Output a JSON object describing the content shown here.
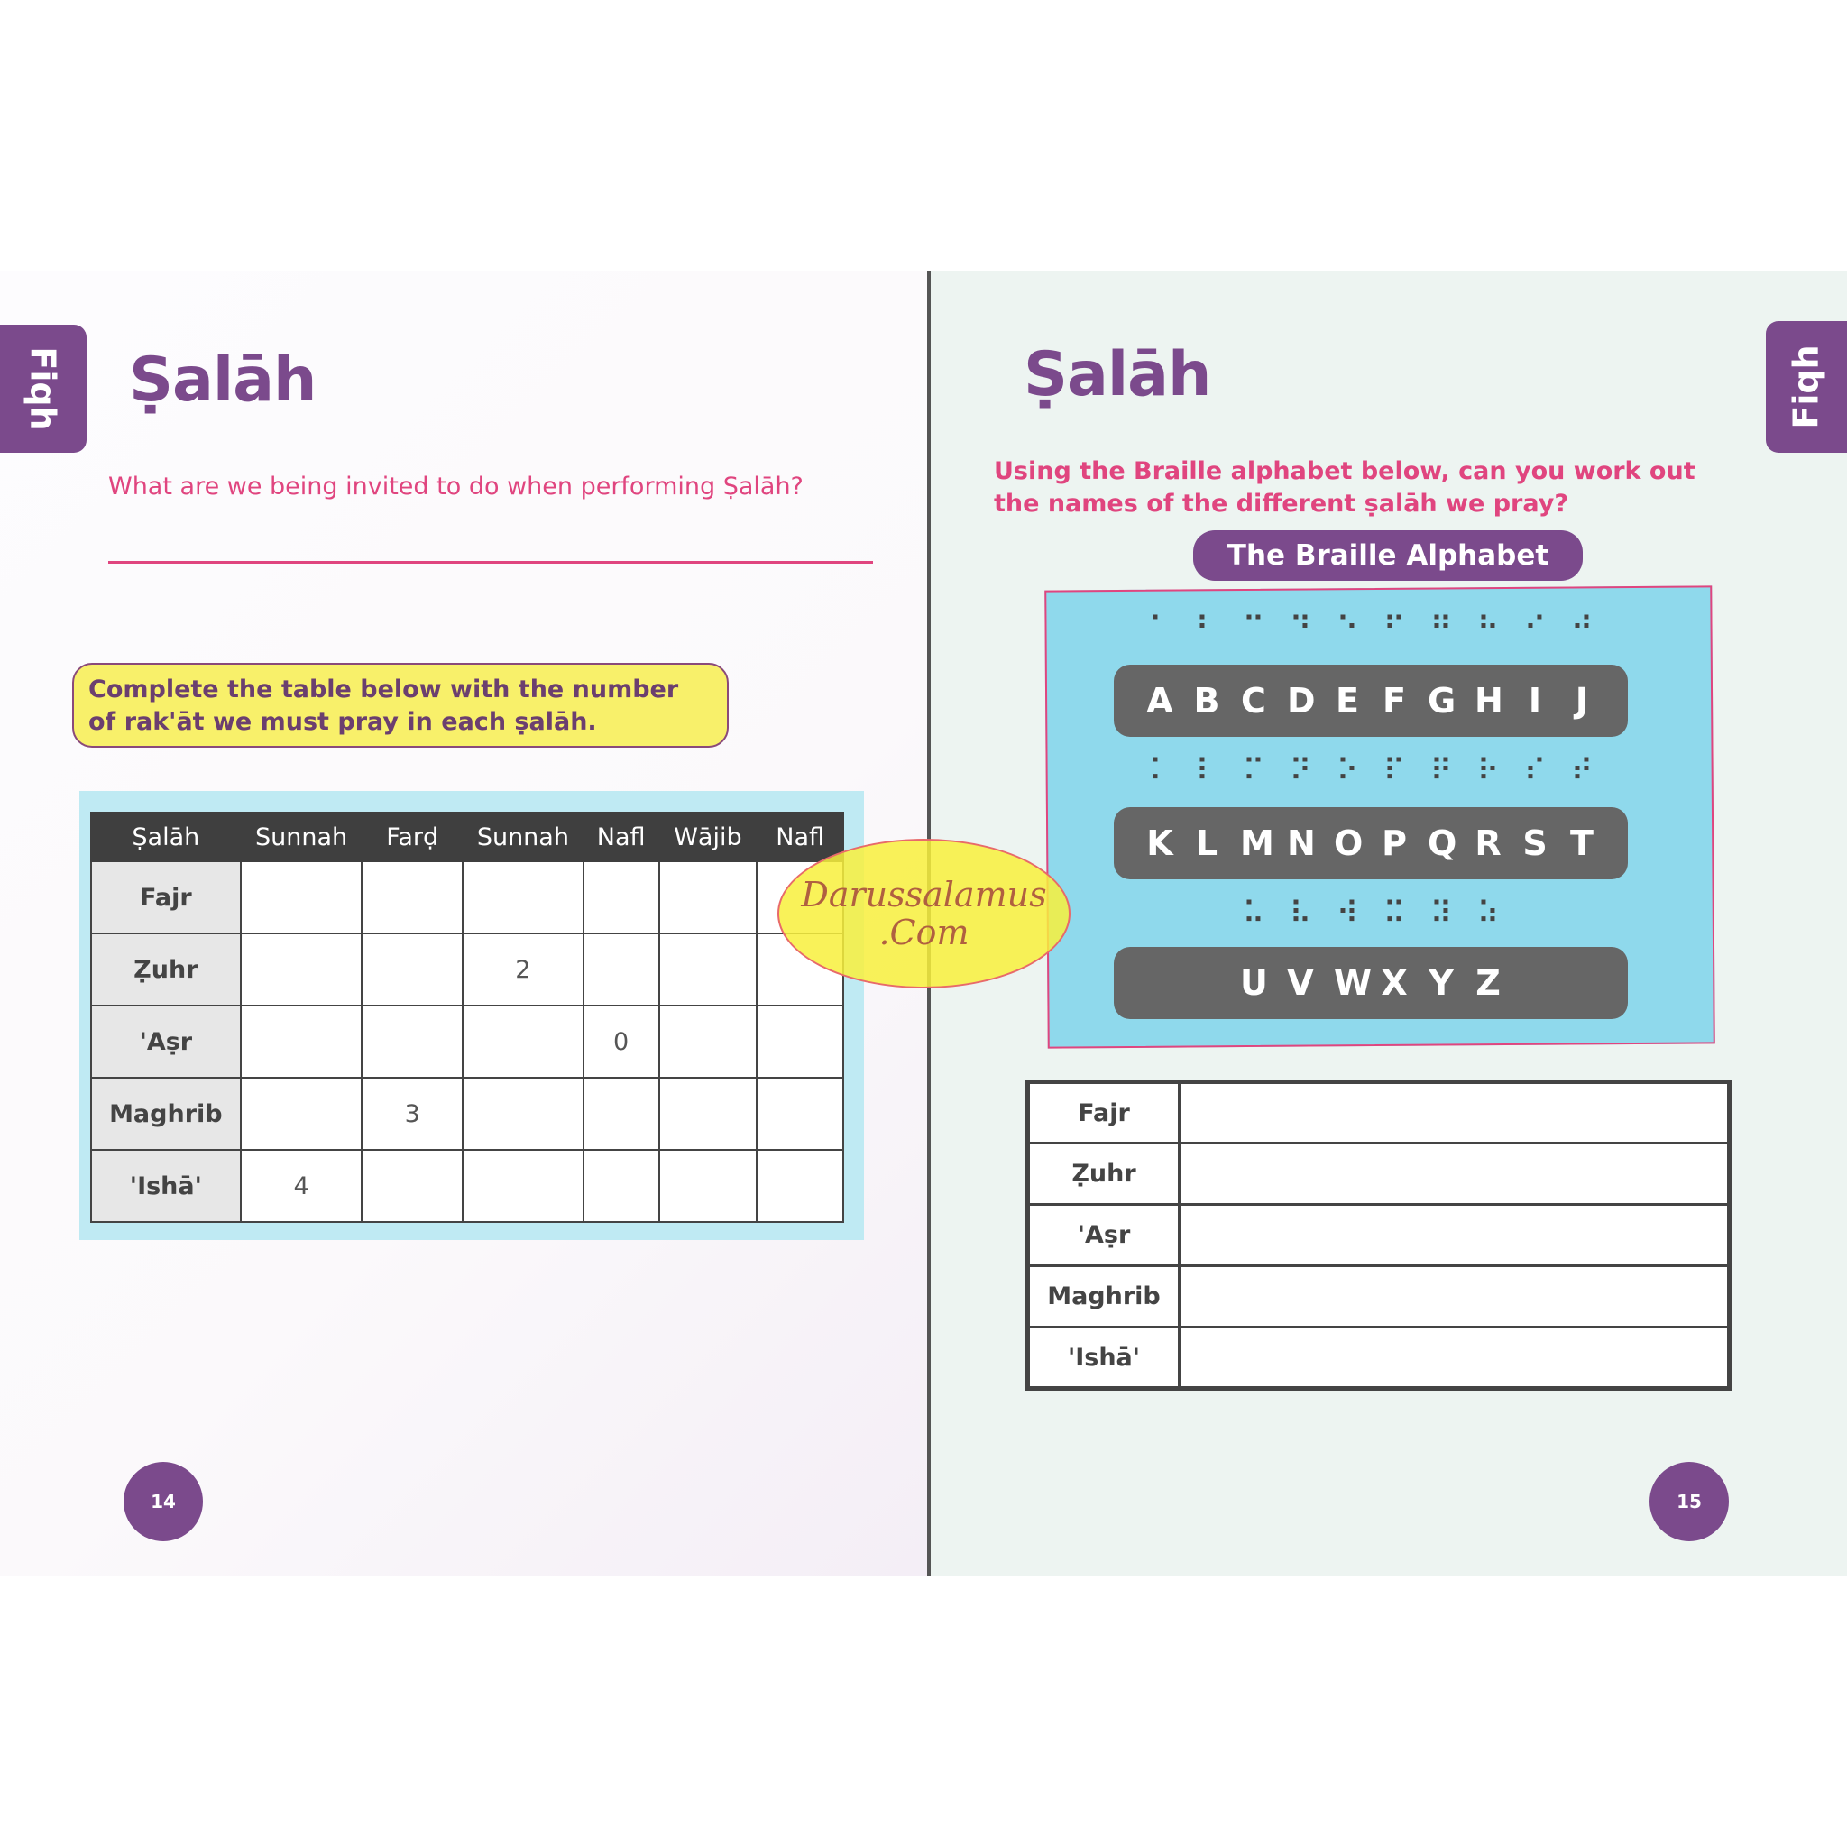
{
  "left_page": {
    "tab": "Fiqh",
    "title": "Ṣalāh",
    "question": "What are we being invited to do when performing Ṣalāh?",
    "instruction": "Complete the table below with the number of rak'āt we must pray in each ṣalāh.",
    "table": {
      "headers": [
        "Ṣalāh",
        "Sunnah",
        "Farḍ",
        "Sunnah",
        "Nafl",
        "Wājib",
        "Nafl"
      ],
      "rows": [
        [
          "Fajr",
          "",
          "",
          "",
          "",
          "",
          ""
        ],
        [
          "Ẓuhr",
          "",
          "",
          "2",
          "",
          "",
          ""
        ],
        [
          "'Aṣr",
          "",
          "",
          "",
          "0",
          "",
          ""
        ],
        [
          "Maghrib",
          "",
          "3",
          "",
          "",
          "",
          ""
        ],
        [
          "'Ishā'",
          "4",
          "",
          "",
          "",
          "",
          ""
        ]
      ]
    },
    "page_number": "14"
  },
  "watermark": {
    "line1": "Darussalamus",
    "line2": ".Com"
  },
  "right_page": {
    "tab": "Fiqh",
    "title": "Ṣalāh",
    "question": "Using the Braille alphabet below, can you work out the names of the different ṣalāh we pray?",
    "alphabet_title": "The Braille Alphabet",
    "rows": [
      {
        "braille": [
          "⠁",
          "⠃",
          "⠉",
          "⠙",
          "⠑",
          "⠋",
          "⠛",
          "⠓",
          "⠊",
          "⠚"
        ],
        "letters": [
          "A",
          "B",
          "C",
          "D",
          "E",
          "F",
          "G",
          "H",
          "I",
          "J"
        ]
      },
      {
        "braille": [
          "⠅",
          "⠇",
          "⠍",
          "⠝",
          "⠕",
          "⠏",
          "⠟",
          "⠗",
          "⠎",
          "⠞"
        ],
        "letters": [
          "K",
          "L",
          "M",
          "N",
          "O",
          "P",
          "Q",
          "R",
          "S",
          "T"
        ]
      },
      {
        "braille": [
          "⠥",
          "⠧",
          "⠺",
          "⠭",
          "⠽",
          "⠵"
        ],
        "letters": [
          "U",
          "V",
          "W",
          "X",
          "Y",
          "Z"
        ]
      }
    ],
    "answers": [
      "Fajr",
      "Ẓuhr",
      "'Aṣr",
      "Maghrib",
      "'Ishā'"
    ],
    "page_number": "15"
  },
  "colors": {
    "purple": "#7b4a8c",
    "pink": "#e0457f",
    "cyan": "#8fd9ec",
    "yellow": "#f8f06a",
    "grey": "#666666"
  }
}
